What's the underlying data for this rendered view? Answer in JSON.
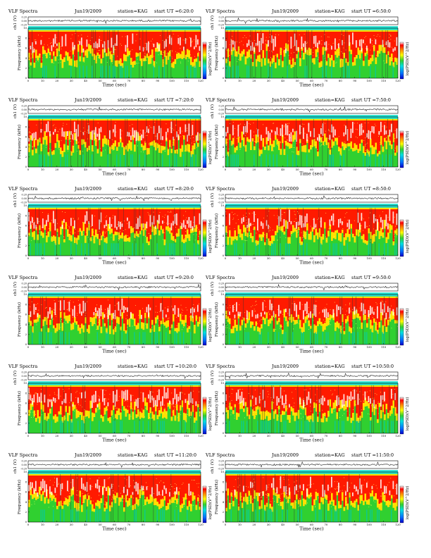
{
  "chart_data": [
    {
      "type": "heatmap",
      "title": "VLF Spectra",
      "date": "Jun19/2009",
      "station": "station=KAG",
      "start": "start UT =6:20:0",
      "xlabel": "Time (sec)",
      "ylabel": "Frequency (kHz)",
      "top_ylabel": "ch1 (V)",
      "colorbar_label": "log(PSD)(V^2/Hz)",
      "xlim": [
        0,
        120
      ],
      "ylim": [
        0,
        10
      ],
      "top_ylim": [
        -0.2,
        0.2
      ],
      "xticks": [
        "0",
        "10",
        "20",
        "30",
        "40",
        "50",
        "60",
        "70",
        "80",
        "90",
        "100",
        "110",
        "120"
      ],
      "yticks": [
        "0",
        "2",
        "4",
        "6",
        "8",
        "10"
      ],
      "top_yticks": [
        "0.20",
        "0.00",
        "-0.20"
      ]
    },
    {
      "type": "heatmap",
      "title": "VLF Spectra",
      "date": "Jun19/2009",
      "station": "station=KAG",
      "start": "start UT =6:50:0",
      "xlabel": "Time (sec)",
      "ylabel": "Frequency (kHz)",
      "top_ylabel": "ch1 (V)",
      "colorbar_label": "log(PSD)(V^2/Hz)",
      "xlim": [
        0,
        120
      ],
      "ylim": [
        0,
        10
      ],
      "top_ylim": [
        -0.2,
        0.2
      ],
      "xticks": [
        "0",
        "10",
        "20",
        "30",
        "40",
        "50",
        "60",
        "70",
        "80",
        "90",
        "100",
        "110",
        "120"
      ],
      "yticks": [
        "0",
        "2",
        "4",
        "6",
        "8",
        "10"
      ],
      "top_yticks": [
        "0.20",
        "0.00",
        "-0.20"
      ]
    },
    {
      "type": "heatmap",
      "title": "VLF Spectra",
      "date": "Jun19/2009",
      "station": "station=KAG",
      "start": "start UT =7:20:0",
      "xlabel": "Time (sec)",
      "ylabel": "Frequency (kHz)",
      "top_ylabel": "ch1 (V)",
      "colorbar_label": "log(PSD)(V^2/Hz)",
      "xlim": [
        0,
        120
      ],
      "ylim": [
        0,
        10
      ],
      "top_ylim": [
        -0.2,
        0.2
      ],
      "xticks": [
        "0",
        "10",
        "20",
        "30",
        "40",
        "50",
        "60",
        "70",
        "80",
        "90",
        "100",
        "110",
        "120"
      ],
      "yticks": [
        "0",
        "2",
        "4",
        "6",
        "8",
        "10"
      ],
      "top_yticks": [
        "0.20",
        "0.00",
        "-0.20"
      ]
    },
    {
      "type": "heatmap",
      "title": "VLF Spectra",
      "date": "Jun19/2009",
      "station": "station=KAG",
      "start": "start UT =7:50:0",
      "xlabel": "Time (sec)",
      "ylabel": "Frequency (kHz)",
      "top_ylabel": "ch1 (V)",
      "colorbar_label": "log(PSD)(V^2/Hz)",
      "xlim": [
        0,
        120
      ],
      "ylim": [
        0,
        10
      ],
      "top_ylim": [
        -0.2,
        0.2
      ],
      "xticks": [
        "0",
        "10",
        "20",
        "30",
        "40",
        "50",
        "60",
        "70",
        "80",
        "90",
        "100",
        "110",
        "120"
      ],
      "yticks": [
        "0",
        "2",
        "4",
        "6",
        "8",
        "10"
      ],
      "top_yticks": [
        "0.20",
        "0.00",
        "-0.20"
      ]
    },
    {
      "type": "heatmap",
      "title": "VLF Spectra",
      "date": "Jun19/2009",
      "station": "station=KAG",
      "start": "start UT =8:20:0",
      "xlabel": "Time (sec)",
      "ylabel": "Frequency (kHz)",
      "top_ylabel": "ch1 (V)",
      "colorbar_label": "log(PSD)(V^2/Hz)",
      "xlim": [
        0,
        120
      ],
      "ylim": [
        0,
        10
      ],
      "top_ylim": [
        -0.2,
        0.2
      ],
      "xticks": [
        "0",
        "10",
        "20",
        "30",
        "40",
        "50",
        "60",
        "70",
        "80",
        "90",
        "100",
        "110",
        "120"
      ],
      "yticks": [
        "0",
        "2",
        "4",
        "6",
        "8",
        "10"
      ],
      "top_yticks": [
        "0.20",
        "0.00",
        "-0.20"
      ]
    },
    {
      "type": "heatmap",
      "title": "VLF Spectra",
      "date": "Jun19/2009",
      "station": "station=KAG",
      "start": "start UT =8:50:0",
      "xlabel": "Time (sec)",
      "ylabel": "Frequency (kHz)",
      "top_ylabel": "ch1 (V)",
      "colorbar_label": "log(PSD)(V^2/Hz)",
      "xlim": [
        0,
        120
      ],
      "ylim": [
        0,
        10
      ],
      "top_ylim": [
        -0.2,
        0.2
      ],
      "xticks": [
        "0",
        "10",
        "20",
        "30",
        "40",
        "50",
        "60",
        "70",
        "80",
        "90",
        "100",
        "110",
        "120"
      ],
      "yticks": [
        "0",
        "2",
        "4",
        "6",
        "8",
        "10"
      ],
      "top_yticks": [
        "0.20",
        "0.00",
        "-0.20"
      ]
    },
    {
      "type": "heatmap",
      "title": "VLF Spectra",
      "date": "Jun19/2009",
      "station": "station=KAG",
      "start": "start UT =9:20:0",
      "xlabel": "Time (sec)",
      "ylabel": "Frequency (kHz)",
      "top_ylabel": "ch1 (V)",
      "colorbar_label": "log(PSD)(V^2/Hz)",
      "xlim": [
        0,
        120
      ],
      "ylim": [
        0,
        10
      ],
      "top_ylim": [
        -0.2,
        0.2
      ],
      "xticks": [
        "0",
        "10",
        "20",
        "30",
        "40",
        "50",
        "60",
        "70",
        "80",
        "90",
        "100",
        "110",
        "120"
      ],
      "yticks": [
        "0",
        "2",
        "4",
        "6",
        "8",
        "10"
      ],
      "top_yticks": [
        "0.20",
        "0.00",
        "-0.20"
      ]
    },
    {
      "type": "heatmap",
      "title": "VLF Spectra",
      "date": "Jun19/2009",
      "station": "station=KAG",
      "start": "start UT =9:50:0",
      "xlabel": "Time (sec)",
      "ylabel": "Frequency (kHz)",
      "top_ylabel": "ch1 (V)",
      "colorbar_label": "log(PSD)(V^2/Hz)",
      "xlim": [
        0,
        120
      ],
      "ylim": [
        0,
        10
      ],
      "top_ylim": [
        -0.2,
        0.2
      ],
      "xticks": [
        "0",
        "10",
        "20",
        "30",
        "40",
        "50",
        "60",
        "70",
        "80",
        "90",
        "100",
        "110",
        "120"
      ],
      "yticks": [
        "0",
        "2",
        "4",
        "6",
        "8",
        "10"
      ],
      "top_yticks": [
        "0.20",
        "0.00",
        "-0.20"
      ]
    },
    {
      "type": "heatmap",
      "title": "VLF Spectra",
      "date": "Jun19/2009",
      "station": "station=KAG",
      "start": "start UT =10:20:0",
      "xlabel": "Time (sec)",
      "ylabel": "Frequency (kHz)",
      "top_ylabel": "ch1 (V)",
      "colorbar_label": "log(PSD)(V^2/Hz)",
      "xlim": [
        0,
        120
      ],
      "ylim": [
        0,
        10
      ],
      "top_ylim": [
        -0.2,
        0.2
      ],
      "xticks": [
        "0",
        "10",
        "20",
        "30",
        "40",
        "50",
        "60",
        "70",
        "80",
        "90",
        "100",
        "110",
        "120"
      ],
      "yticks": [
        "0",
        "2",
        "4",
        "6",
        "8",
        "10"
      ],
      "top_yticks": [
        "0.20",
        "0.00",
        "-0.20"
      ]
    },
    {
      "type": "heatmap",
      "title": "VLF Spectra",
      "date": "Jun19/2009",
      "station": "station=KAG",
      "start": "start UT =10:50:0",
      "xlabel": "Time (sec)",
      "ylabel": "Frequency (kHz)",
      "top_ylabel": "ch1 (V)",
      "colorbar_label": "log(PSD)(V^2/Hz)",
      "xlim": [
        0,
        120
      ],
      "ylim": [
        0,
        10
      ],
      "top_ylim": [
        -0.2,
        0.2
      ],
      "xticks": [
        "0",
        "10",
        "20",
        "30",
        "40",
        "50",
        "60",
        "70",
        "80",
        "90",
        "100",
        "110",
        "120"
      ],
      "yticks": [
        "0",
        "2",
        "4",
        "6",
        "8",
        "10"
      ],
      "top_yticks": [
        "0.20",
        "0.00",
        "-0.20"
      ]
    },
    {
      "type": "heatmap",
      "title": "VLF Spectra",
      "date": "Jun19/2009",
      "station": "station=KAG",
      "start": "start UT =11:20:0",
      "xlabel": "Time (sec)",
      "ylabel": "Frequency (kHz)",
      "top_ylabel": "ch1 (V)",
      "colorbar_label": "log(PSD)(V^2/Hz)",
      "xlim": [
        0,
        120
      ],
      "ylim": [
        0,
        10
      ],
      "top_ylim": [
        -0.2,
        0.2
      ],
      "xticks": [
        "0",
        "10",
        "20",
        "30",
        "40",
        "50",
        "60",
        "70",
        "80",
        "90",
        "100",
        "110",
        "120"
      ],
      "yticks": [
        "0",
        "2",
        "4",
        "6",
        "8",
        "10"
      ],
      "top_yticks": [
        "0.20",
        "0.00",
        "-0.20"
      ]
    },
    {
      "type": "heatmap",
      "title": "VLF Spectra",
      "date": "Jun19/2009",
      "station": "station=KAG",
      "start": "start UT =11:50:0",
      "xlabel": "Time (sec)",
      "ylabel": "Frequency (kHz)",
      "top_ylabel": "ch1 (V)",
      "colorbar_label": "log(PSD)(V^2/Hz)",
      "xlim": [
        0,
        120
      ],
      "ylim": [
        0,
        10
      ],
      "top_ylim": [
        -0.2,
        0.2
      ],
      "xticks": [
        "0",
        "10",
        "20",
        "30",
        "40",
        "50",
        "60",
        "70",
        "80",
        "90",
        "100",
        "110",
        "120"
      ],
      "yticks": [
        "0",
        "2",
        "4",
        "6",
        "8",
        "10"
      ],
      "top_yticks": [
        "0.20",
        "0.00",
        "-0.20"
      ]
    }
  ]
}
